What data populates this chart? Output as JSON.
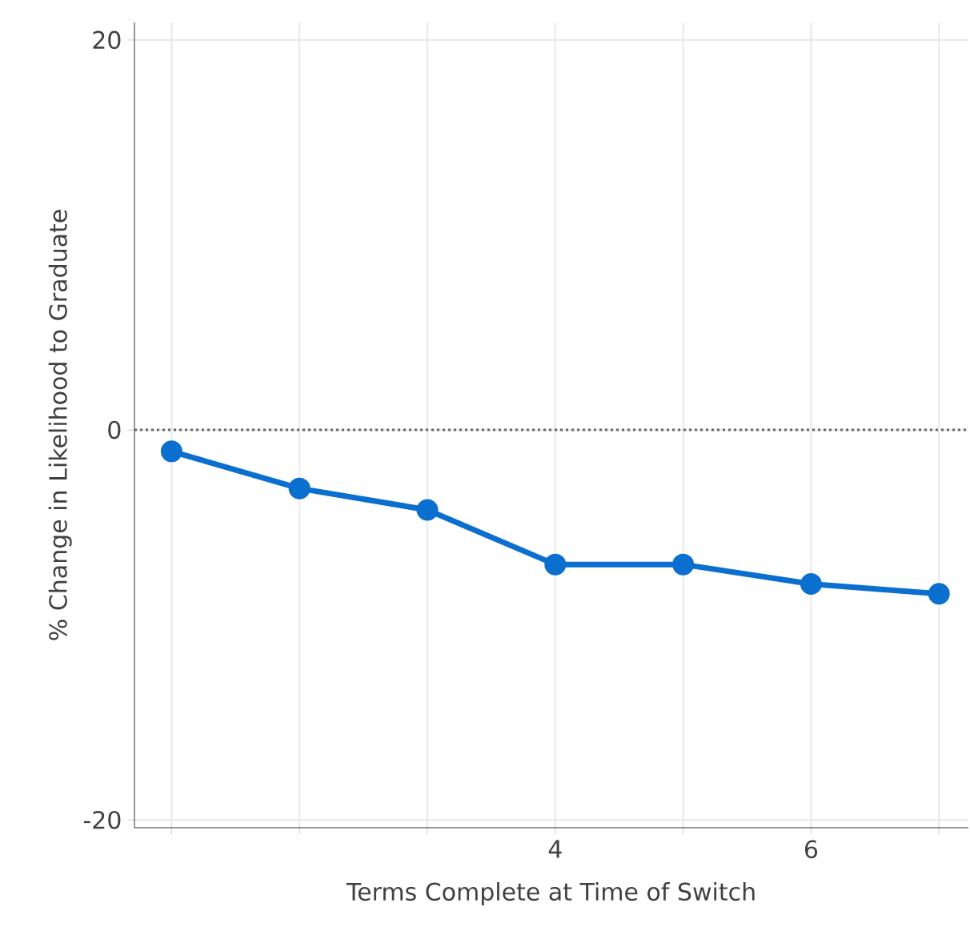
{
  "chart_data": {
    "type": "line",
    "xlabel": "Terms Complete at Time of Switch",
    "ylabel": "% Change in Likelihood to Graduate",
    "x": [
      1,
      2,
      3,
      4,
      5,
      6,
      7
    ],
    "series": [
      {
        "color": "#0a6fcf",
        "values": [
          -1.1,
          -3.0,
          -4.1,
          -6.9,
          -6.9,
          -7.9,
          -8.4
        ]
      }
    ],
    "xlim": [
      0.71,
      7.23
    ],
    "ylim": [
      -20.4,
      20.9
    ],
    "xticks": [
      {
        "value": 1,
        "label": null
      },
      {
        "value": 2,
        "label": null
      },
      {
        "value": 3,
        "label": null
      },
      4,
      {
        "value": 5,
        "label": null
      },
      6,
      {
        "value": 7,
        "label": null
      }
    ],
    "yticks": [
      -20,
      0,
      20
    ],
    "ref_lines": [
      {
        "axis": "y",
        "value": 0,
        "color": "#666666",
        "line_style": "dotted"
      }
    ],
    "grid": true,
    "marker": "circle",
    "line_style": "solid"
  }
}
